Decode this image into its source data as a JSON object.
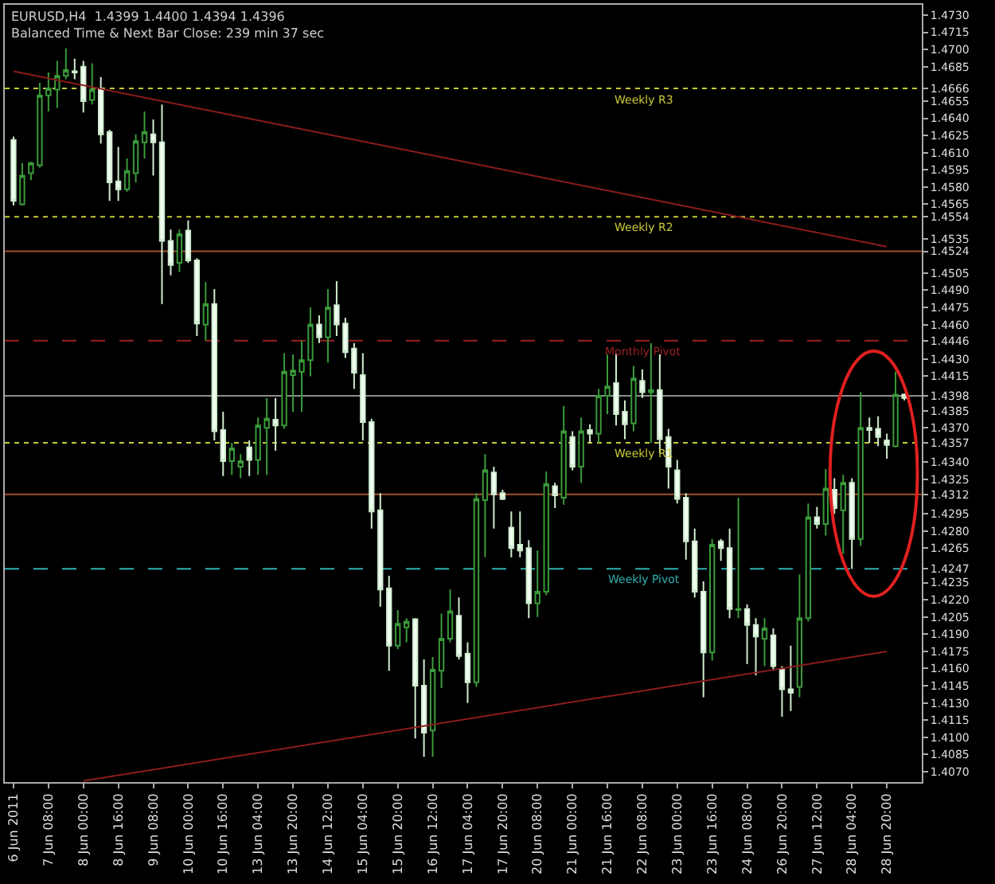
{
  "chart_data": {
    "type": "candlestick",
    "title": "EURUSD,H4  1.4399 1.4400 1.4394 1.4396",
    "subtitle": "Balanced Time & Next Bar Close: 239 min 37 sec",
    "categories": [
      "6 Jun 2011",
      null,
      null,
      null,
      "7 Jun 08:00",
      null,
      null,
      null,
      "8 Jun 00:00",
      null,
      null,
      null,
      "8 Jun 16:00",
      null,
      null,
      null,
      "9 Jun 08:00",
      null,
      null,
      null,
      "10 Jun 00:00",
      null,
      null,
      null,
      "10 Jun 16:00",
      null,
      null,
      null,
      "13 Jun 04:00",
      null,
      null,
      null,
      "13 Jun 20:00",
      null,
      null,
      null,
      "14 Jun 12:00",
      null,
      null,
      null,
      "15 Jun 04:00",
      null,
      null,
      null,
      "15 Jun 20:00",
      null,
      null,
      null,
      "16 Jun 12:00",
      null,
      null,
      null,
      "17 Jun 04:00",
      null,
      null,
      null,
      "17 Jun 20:00",
      null,
      null,
      null,
      "20 Jun 08:00",
      null,
      null,
      null,
      "21 Jun 00:00",
      null,
      null,
      null,
      "21 Jun 16:00",
      null,
      null,
      null,
      "22 Jun 08:00",
      null,
      null,
      null,
      "23 Jun 00:00",
      null,
      null,
      null,
      "23 Jun 16:00",
      null,
      null,
      null,
      "24 Jun 08:00",
      null,
      null,
      null,
      "26 Jun 20:00",
      null,
      null,
      null,
      "27 Jun 12:00",
      null,
      null,
      null,
      "28 Jun 04:00",
      null,
      null,
      null,
      "28 Jun 20:00",
      null,
      null
    ],
    "ohlc": [
      [
        1.4621,
        1.4624,
        1.4564,
        1.4568
      ],
      [
        1.4565,
        1.4601,
        1.4564,
        1.459
      ],
      [
        1.4592,
        1.4602,
        1.4586,
        1.4601
      ],
      [
        1.4599,
        1.4671,
        1.4597,
        1.466
      ],
      [
        1.466,
        1.468,
        1.4646,
        1.4666
      ],
      [
        1.4665,
        1.469,
        1.4649,
        1.4677
      ],
      [
        1.4677,
        1.4701,
        1.4674,
        1.4682
      ],
      [
        1.4681,
        1.4692,
        1.4674,
        1.468
      ],
      [
        1.4685,
        1.469,
        1.4645,
        1.4655
      ],
      [
        1.4656,
        1.4688,
        1.4652,
        1.4665
      ],
      [
        1.4666,
        1.4676,
        1.4618,
        1.4626
      ],
      [
        1.4628,
        1.463,
        1.4568,
        1.4584
      ],
      [
        1.4585,
        1.4615,
        1.4568,
        1.4578
      ],
      [
        1.4578,
        1.4605,
        1.4576,
        1.4594
      ],
      [
        1.4592,
        1.4626,
        1.4584,
        1.462
      ],
      [
        1.4619,
        1.4646,
        1.4605,
        1.4628
      ],
      [
        1.4626,
        1.4639,
        1.459,
        1.4619
      ],
      [
        1.4619,
        1.4652,
        1.4478,
        1.4533
      ],
      [
        1.4533,
        1.4543,
        1.4503,
        1.4512
      ],
      [
        1.4514,
        1.4543,
        1.4506,
        1.4539
      ],
      [
        1.4542,
        1.4551,
        1.4514,
        1.4516
      ],
      [
        1.4516,
        1.4518,
        1.445,
        1.4461
      ],
      [
        1.446,
        1.4497,
        1.4446,
        1.4478
      ],
      [
        1.4478,
        1.4491,
        1.4359,
        1.4367
      ],
      [
        1.4368,
        1.4384,
        1.4328,
        1.4341
      ],
      [
        1.4341,
        1.4357,
        1.4329,
        1.4352
      ],
      [
        1.4336,
        1.4347,
        1.4326,
        1.4341
      ],
      [
        1.4353,
        1.4359,
        1.4328,
        1.4342
      ],
      [
        1.4342,
        1.4379,
        1.4329,
        1.4372
      ],
      [
        1.437,
        1.4396,
        1.4329,
        1.4378
      ],
      [
        1.4377,
        1.4396,
        1.435,
        1.4372
      ],
      [
        1.4372,
        1.4435,
        1.4369,
        1.4419
      ],
      [
        1.4416,
        1.4434,
        1.4384,
        1.442
      ],
      [
        1.4419,
        1.4446,
        1.4384,
        1.4429
      ],
      [
        1.4429,
        1.4475,
        1.4415,
        1.446
      ],
      [
        1.446,
        1.4468,
        1.4444,
        1.4449
      ],
      [
        1.4449,
        1.4491,
        1.4427,
        1.4475
      ],
      [
        1.4477,
        1.4498,
        1.445,
        1.446
      ],
      [
        1.4461,
        1.4466,
        1.4431,
        1.4436
      ],
      [
        1.4439,
        1.4444,
        1.4404,
        1.4418
      ],
      [
        1.4416,
        1.4435,
        1.4359,
        1.4375
      ],
      [
        1.4375,
        1.4378,
        1.4282,
        1.4297
      ],
      [
        1.4298,
        1.4313,
        1.4214,
        1.4229
      ],
      [
        1.423,
        1.4241,
        1.4158,
        1.418
      ],
      [
        1.418,
        1.4211,
        1.4177,
        1.4199
      ],
      [
        1.4196,
        1.4204,
        1.4183,
        1.4201
      ],
      [
        1.4203,
        1.4204,
        1.4099,
        1.4145
      ],
      [
        1.4145,
        1.4168,
        1.4083,
        1.4104
      ],
      [
        1.4106,
        1.417,
        1.4083,
        1.4159
      ],
      [
        1.4158,
        1.4208,
        1.4143,
        1.4186
      ],
      [
        1.4186,
        1.4229,
        1.4183,
        1.421
      ],
      [
        1.4206,
        1.4222,
        1.4168,
        1.4171
      ],
      [
        1.4173,
        1.4183,
        1.413,
        1.4148
      ],
      [
        1.4148,
        1.4313,
        1.4144,
        1.4308
      ],
      [
        1.4307,
        1.4347,
        1.4257,
        1.4333
      ],
      [
        1.4331,
        1.4336,
        1.4282,
        1.4312
      ],
      [
        1.4313,
        1.4316,
        1.4307,
        1.4308
      ],
      [
        1.4283,
        1.4297,
        1.4257,
        1.4265
      ],
      [
        1.4268,
        1.4297,
        1.4257,
        1.4263
      ],
      [
        1.4265,
        1.4272,
        1.4204,
        1.4217
      ],
      [
        1.4217,
        1.4263,
        1.4205,
        1.4227
      ],
      [
        1.4227,
        1.4332,
        1.4224,
        1.4321
      ],
      [
        1.4319,
        1.4322,
        1.43,
        1.4311
      ],
      [
        1.4309,
        1.4389,
        1.4303,
        1.4367
      ],
      [
        1.4362,
        1.4367,
        1.4333,
        1.4336
      ],
      [
        1.4336,
        1.4379,
        1.4322,
        1.4367
      ],
      [
        1.4368,
        1.4373,
        1.4357,
        1.4365
      ],
      [
        1.4365,
        1.4404,
        1.4357,
        1.4398
      ],
      [
        1.4398,
        1.4434,
        1.4382,
        1.4406
      ],
      [
        1.4409,
        1.4435,
        1.4372,
        1.4382
      ],
      [
        1.4384,
        1.4394,
        1.436,
        1.4373
      ],
      [
        1.4374,
        1.4424,
        1.4367,
        1.4413
      ],
      [
        1.4411,
        1.4421,
        1.4396,
        1.4401
      ],
      [
        1.4401,
        1.4444,
        1.4357,
        1.4403
      ],
      [
        1.4403,
        1.4434,
        1.4348,
        1.436
      ],
      [
        1.4362,
        1.4369,
        1.4317,
        1.4336
      ],
      [
        1.4333,
        1.4342,
        1.4304,
        1.4308
      ],
      [
        1.4309,
        1.4313,
        1.4255,
        1.4271
      ],
      [
        1.4271,
        1.4282,
        1.4222,
        1.4227
      ],
      [
        1.4227,
        1.4236,
        1.4135,
        1.4174
      ],
      [
        1.4174,
        1.4273,
        1.4167,
        1.4268
      ],
      [
        1.4271,
        1.4273,
        1.4254,
        1.4265
      ],
      [
        1.4265,
        1.4282,
        1.4204,
        1.4212
      ],
      [
        1.4211,
        1.4309,
        1.4204,
        1.4212
      ],
      [
        1.4212,
        1.4216,
        1.4164,
        1.4198
      ],
      [
        1.4198,
        1.4204,
        1.4154,
        1.4188
      ],
      [
        1.4186,
        1.4204,
        1.4162,
        1.4195
      ],
      [
        1.4189,
        1.4195,
        1.4158,
        1.4162
      ],
      [
        1.4159,
        1.4162,
        1.4118,
        1.4142
      ],
      [
        1.4142,
        1.418,
        1.4123,
        1.4139
      ],
      [
        1.4144,
        1.4242,
        1.4135,
        1.4204
      ],
      [
        1.4204,
        1.4304,
        1.4201,
        1.4292
      ],
      [
        1.4292,
        1.4301,
        1.4282,
        1.4286
      ],
      [
        1.4286,
        1.4334,
        1.4276,
        1.4317
      ],
      [
        1.4316,
        1.4326,
        1.4295,
        1.43
      ],
      [
        1.4298,
        1.4329,
        1.426,
        1.4322
      ],
      [
        1.4322,
        1.4326,
        1.4247,
        1.4273
      ],
      [
        1.4273,
        1.4401,
        1.4267,
        1.437
      ],
      [
        1.437,
        1.4379,
        1.4357,
        1.4368
      ],
      [
        1.4369,
        1.438,
        1.4354,
        1.4362
      ],
      [
        1.4359,
        1.4365,
        1.4343,
        1.4355
      ],
      [
        1.4354,
        1.4419,
        1.4353,
        1.4399
      ],
      [
        1.4399,
        1.44,
        1.4394,
        1.4396
      ]
    ],
    "series": [
      {
        "type": "line",
        "color": "#8b1c1c",
        "x": [
          "6 Jun 2011",
          "28 Jun 20:00"
        ],
        "values": [
          1.4681,
          1.4528
        ]
      },
      {
        "type": "line",
        "color": "#8b1c1c",
        "x": [
          "8 Jun 00:00",
          "28 Jun 20:00"
        ],
        "values": [
          1.4062,
          1.4175
        ]
      }
    ],
    "ylim": [
      1.4061,
      1.4739
    ],
    "yticks": [
      {
        "value": 1.473,
        "label": "1.4730"
      },
      1.4715,
      {
        "value": 1.47,
        "label": "1.4700"
      },
      1.4685,
      1.4655,
      {
        "value": 1.464,
        "label": "1.4640"
      },
      1.4625,
      {
        "value": 1.461,
        "label": "1.4610"
      },
      1.4595,
      {
        "value": 1.458,
        "label": "1.4580"
      },
      1.4565,
      1.4535,
      1.4505,
      {
        "value": 1.449,
        "label": "1.4490"
      },
      1.4475,
      {
        "value": 1.446,
        "label": "1.4460"
      },
      {
        "value": 1.443,
        "label": "1.4430"
      },
      1.4415,
      1.4385,
      {
        "value": 1.437,
        "label": "1.4370"
      },
      {
        "value": 1.434,
        "label": "1.4340"
      },
      1.4325,
      1.4295,
      {
        "value": 1.428,
        "label": "1.4280"
      },
      1.4265,
      1.4235,
      {
        "value": 1.422,
        "label": "1.4220"
      },
      1.4205,
      {
        "value": 1.419,
        "label": "1.4190"
      },
      1.4175,
      {
        "value": 1.416,
        "label": "1.4160"
      },
      1.4145,
      {
        "value": 1.413,
        "label": "1.4130"
      },
      1.4115,
      {
        "value": 1.41,
        "label": "1.4100"
      },
      1.4085,
      {
        "value": 1.407,
        "label": "1.4070"
      },
      1.4666,
      1.4554,
      1.4524,
      1.4446,
      1.4398,
      1.4357,
      1.4312,
      1.4247
    ],
    "ref_lines": [
      {
        "axis": "y",
        "value": 1.4666,
        "label": "Weekly R3",
        "color": "#c8c83c",
        "line_style": "dotted"
      },
      {
        "axis": "y",
        "value": 1.4554,
        "label": "Weekly R2",
        "color": "#c8c83c",
        "line_style": "dotted"
      },
      {
        "axis": "y",
        "value": 1.4524,
        "color": "#a0522d",
        "line_style": "solid"
      },
      {
        "axis": "y",
        "value": 1.4446,
        "label": "Monthly Pivot",
        "color": "#9b2020",
        "line_style": "dashed"
      },
      {
        "axis": "y",
        "value": 1.4398,
        "color": "#8c8c8c",
        "line_style": "solid"
      },
      {
        "axis": "y",
        "value": 1.4357,
        "label": "Weekly R1",
        "color": "#c8c83c",
        "line_style": "dotted"
      },
      {
        "axis": "y",
        "value": 1.4312,
        "color": "#a0522d",
        "line_style": "solid"
      },
      {
        "axis": "y",
        "value": 1.4247,
        "label": "Weekly Pivot",
        "color": "#30b0b0",
        "line_style": "dashed"
      }
    ],
    "grid": false
  }
}
